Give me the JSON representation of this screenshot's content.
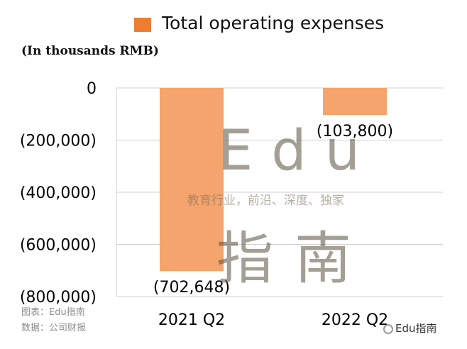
{
  "chart_data": {
    "type": "bar",
    "categories": [
      "2021 Q2",
      "2022 Q2"
    ],
    "series": [
      {
        "name": "Total operating expenses",
        "values": [
          -702648,
          -103800
        ],
        "value_labels": [
          "(702,648)",
          "(103,800)"
        ],
        "color": "#f4a46c"
      }
    ],
    "ylabel": "(In thousands RMB)",
    "yticks": [
      0,
      -200000,
      -400000,
      -600000,
      -800000
    ],
    "ytick_labels": [
      "0",
      "(200,000)",
      "(400,000)",
      "(600,000)",
      "(800,000)"
    ],
    "ylim": [
      -800000,
      0
    ],
    "grid": true,
    "legend_position": "top"
  },
  "legend": {
    "label": "Total operating expenses",
    "swatch_color": "#ed7d31"
  },
  "units_label": "(In thousands RMB)",
  "source": {
    "line1": "图表：Edu指南",
    "line2": "数据：公司财报"
  },
  "watermark": {
    "latin": "Edu",
    "tagline": "教育行业，前沿、深度、独家",
    "chinese": "指南"
  },
  "brand": {
    "icon": "wechat-icon",
    "label": "Edu指南"
  }
}
